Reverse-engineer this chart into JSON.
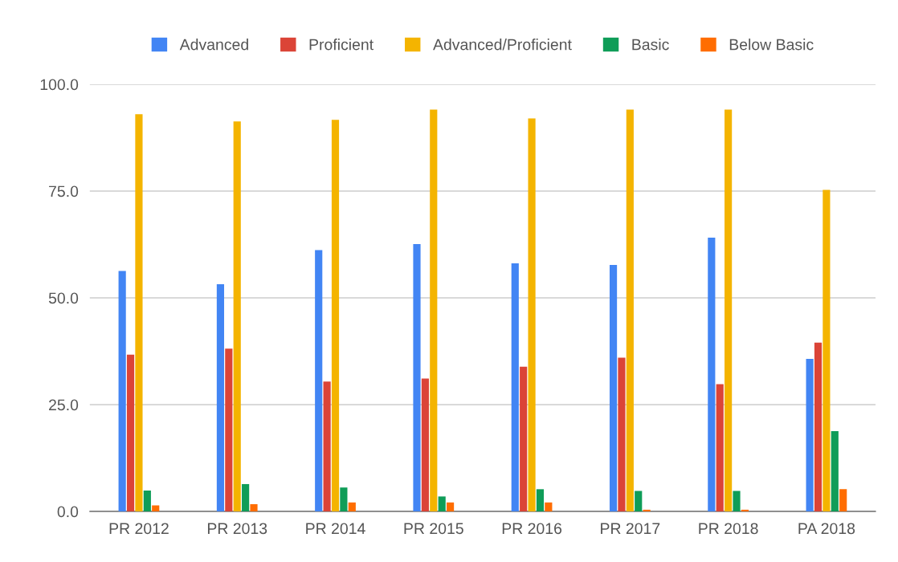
{
  "chart_data": {
    "type": "bar",
    "categories": [
      "PR 2012",
      "PR 2013",
      "PR 2014",
      "PR 2015",
      "PR 2016",
      "PR 2017",
      "PR 2018",
      "PA 2018"
    ],
    "series": [
      {
        "name": "Advanced",
        "color": "#4285f4",
        "values": [
          56.3,
          53.2,
          61.2,
          62.6,
          58.1,
          57.7,
          64.1,
          35.7
        ]
      },
      {
        "name": "Proficient",
        "color": "#db4437",
        "values": [
          36.7,
          38.1,
          30.4,
          31.1,
          33.9,
          36.0,
          29.8,
          39.5
        ]
      },
      {
        "name": "Advanced/Proficient",
        "color": "#f4b400",
        "values": [
          93.0,
          91.3,
          91.7,
          94.1,
          92.0,
          94.1,
          94.1,
          75.3
        ]
      },
      {
        "name": "Basic",
        "color": "#0f9d58",
        "values": [
          4.9,
          6.4,
          5.6,
          3.5,
          5.2,
          4.8,
          4.8,
          18.8
        ]
      },
      {
        "name": "Below Basic",
        "color": "#ff6d01",
        "values": [
          1.4,
          1.7,
          2.1,
          2.1,
          2.1,
          0.4,
          0.4,
          5.2
        ]
      }
    ],
    "ylim": [
      0,
      100
    ],
    "yticks": [
      {
        "value": 0,
        "label": "0.0"
      },
      {
        "value": 25,
        "label": "25.0"
      },
      {
        "value": 50,
        "label": "50.0"
      },
      {
        "value": 75,
        "label": "75.0"
      },
      {
        "value": 100,
        "label": "100.0"
      }
    ],
    "grid": "y",
    "legend": "top"
  }
}
